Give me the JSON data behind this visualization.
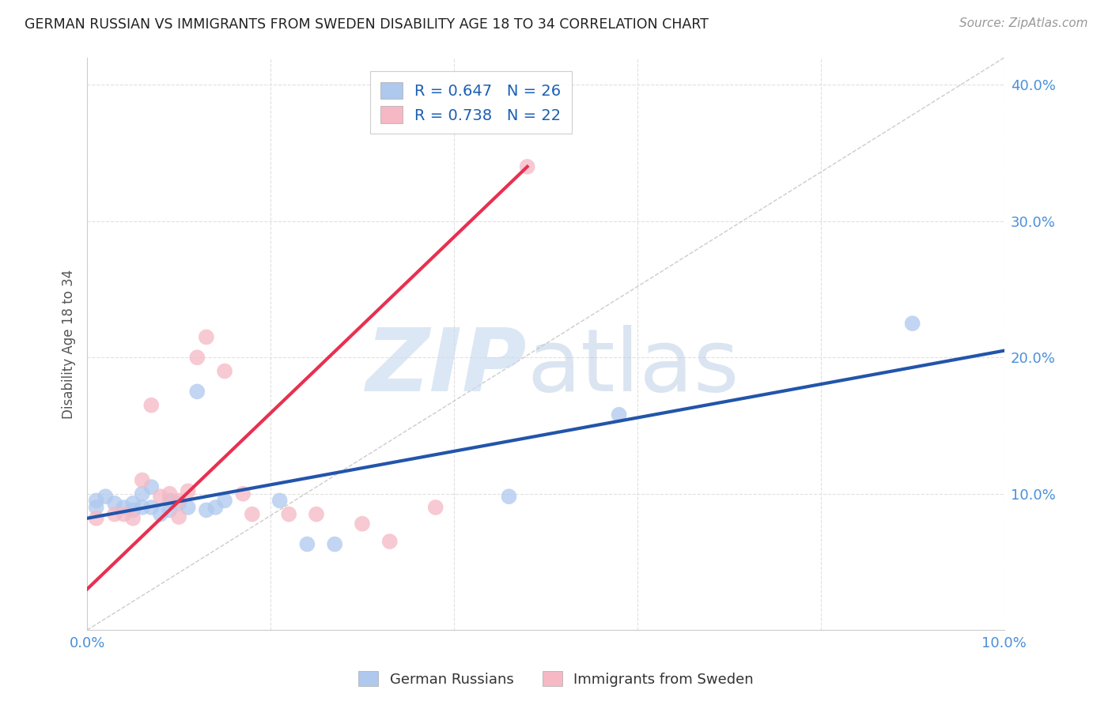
{
  "title": "GERMAN RUSSIAN VS IMMIGRANTS FROM SWEDEN DISABILITY AGE 18 TO 34 CORRELATION CHART",
  "source": "Source: ZipAtlas.com",
  "ylabel": "Disability Age 18 to 34",
  "xlim": [
    0.0,
    0.1
  ],
  "ylim": [
    0.0,
    0.42
  ],
  "xticks": [
    0.0,
    0.02,
    0.04,
    0.06,
    0.08,
    0.1
  ],
  "yticks": [
    0.0,
    0.1,
    0.2,
    0.3,
    0.4
  ],
  "ytick_labels": [
    "",
    "10.0%",
    "20.0%",
    "30.0%",
    "40.0%"
  ],
  "xtick_labels": [
    "0.0%",
    "",
    "",
    "",
    "",
    "10.0%"
  ],
  "blue_color": "#aec8ee",
  "pink_color": "#f5b8c4",
  "blue_line_color": "#2255aa",
  "pink_line_color": "#e83050",
  "blue_R": 0.647,
  "blue_N": 26,
  "pink_R": 0.738,
  "pink_N": 22,
  "blue_points_x": [
    0.001,
    0.001,
    0.002,
    0.003,
    0.004,
    0.005,
    0.005,
    0.006,
    0.006,
    0.007,
    0.007,
    0.008,
    0.009,
    0.009,
    0.01,
    0.011,
    0.012,
    0.013,
    0.014,
    0.015,
    0.021,
    0.024,
    0.027,
    0.046,
    0.058,
    0.09
  ],
  "blue_points_y": [
    0.09,
    0.095,
    0.098,
    0.093,
    0.09,
    0.088,
    0.093,
    0.1,
    0.09,
    0.105,
    0.09,
    0.085,
    0.095,
    0.088,
    0.093,
    0.09,
    0.175,
    0.088,
    0.09,
    0.095,
    0.095,
    0.063,
    0.063,
    0.098,
    0.158,
    0.225
  ],
  "pink_points_x": [
    0.001,
    0.003,
    0.004,
    0.005,
    0.006,
    0.007,
    0.008,
    0.009,
    0.01,
    0.01,
    0.011,
    0.012,
    0.013,
    0.015,
    0.017,
    0.018,
    0.022,
    0.025,
    0.03,
    0.033,
    0.038,
    0.048
  ],
  "pink_points_y": [
    0.082,
    0.085,
    0.085,
    0.082,
    0.11,
    0.165,
    0.098,
    0.1,
    0.095,
    0.083,
    0.102,
    0.2,
    0.215,
    0.19,
    0.1,
    0.085,
    0.085,
    0.085,
    0.078,
    0.065,
    0.09,
    0.34
  ],
  "blue_line_x": [
    0.0,
    0.1
  ],
  "blue_line_y": [
    0.082,
    0.205
  ],
  "pink_line_x": [
    0.0,
    0.048
  ],
  "pink_line_y": [
    0.03,
    0.34
  ],
  "diag_line_x": [
    0.0,
    0.1
  ],
  "diag_line_y": [
    0.0,
    0.42
  ]
}
